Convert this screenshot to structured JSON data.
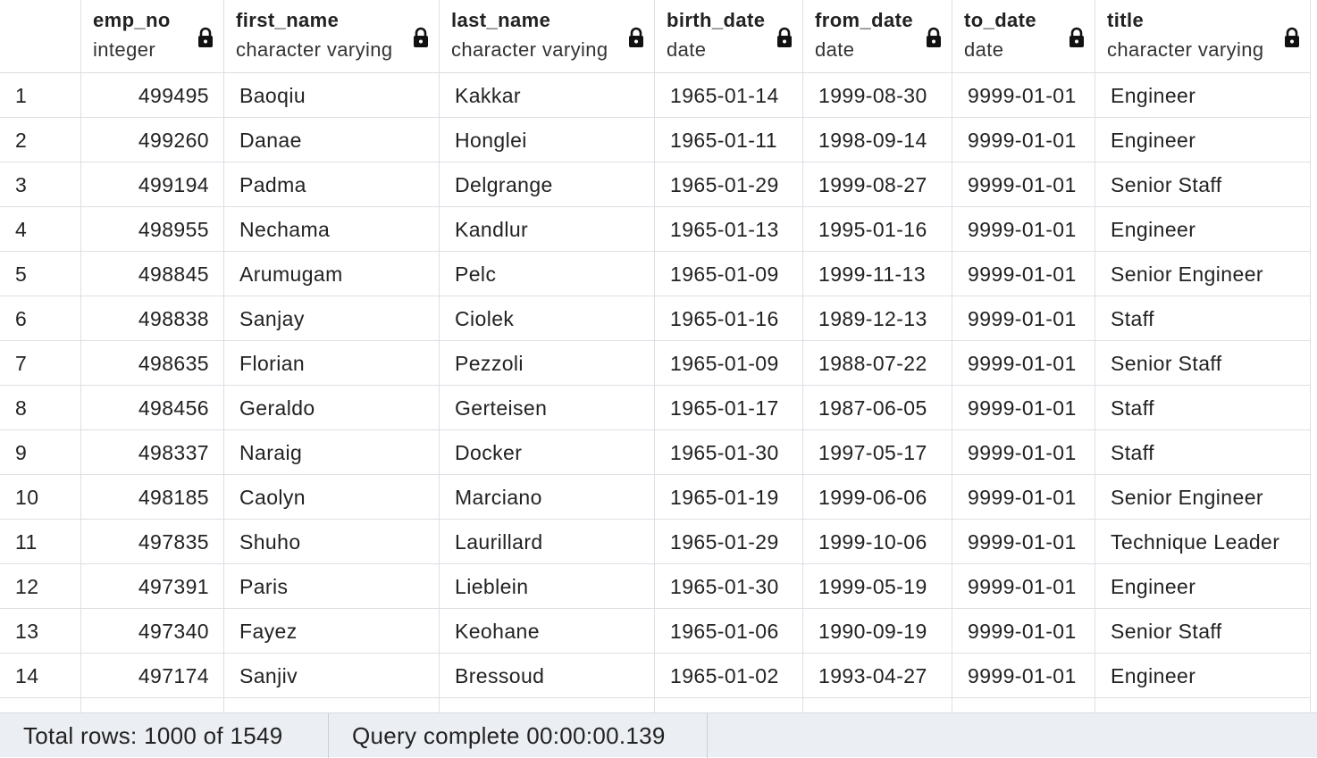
{
  "columns": [
    {
      "name": "",
      "type": ""
    },
    {
      "name": "emp_no",
      "type": "integer"
    },
    {
      "name": "first_name",
      "type": "character varying"
    },
    {
      "name": "last_name",
      "type": "character varying"
    },
    {
      "name": "birth_date",
      "type": "date"
    },
    {
      "name": "from_date",
      "type": "date"
    },
    {
      "name": "to_date",
      "type": "date"
    },
    {
      "name": "title",
      "type": "character varying"
    }
  ],
  "rows": [
    [
      "1",
      "499495",
      "Baoqiu",
      "Kakkar",
      "1965-01-14",
      "1999-08-30",
      "9999-01-01",
      "Engineer"
    ],
    [
      "2",
      "499260",
      "Danae",
      "Honglei",
      "1965-01-11",
      "1998-09-14",
      "9999-01-01",
      "Engineer"
    ],
    [
      "3",
      "499194",
      "Padma",
      "Delgrange",
      "1965-01-29",
      "1999-08-27",
      "9999-01-01",
      "Senior Staff"
    ],
    [
      "4",
      "498955",
      "Nechama",
      "Kandlur",
      "1965-01-13",
      "1995-01-16",
      "9999-01-01",
      "Engineer"
    ],
    [
      "5",
      "498845",
      "Arumugam",
      "Pelc",
      "1965-01-09",
      "1999-11-13",
      "9999-01-01",
      "Senior Engineer"
    ],
    [
      "6",
      "498838",
      "Sanjay",
      "Ciolek",
      "1965-01-16",
      "1989-12-13",
      "9999-01-01",
      "Staff"
    ],
    [
      "7",
      "498635",
      "Florian",
      "Pezzoli",
      "1965-01-09",
      "1988-07-22",
      "9999-01-01",
      "Senior Staff"
    ],
    [
      "8",
      "498456",
      "Geraldo",
      "Gerteisen",
      "1965-01-17",
      "1987-06-05",
      "9999-01-01",
      "Staff"
    ],
    [
      "9",
      "498337",
      "Naraig",
      "Docker",
      "1965-01-30",
      "1997-05-17",
      "9999-01-01",
      "Staff"
    ],
    [
      "10",
      "498185",
      "Caolyn",
      "Marciano",
      "1965-01-19",
      "1999-06-06",
      "9999-01-01",
      "Senior Engineer"
    ],
    [
      "11",
      "497835",
      "Shuho",
      "Laurillard",
      "1965-01-29",
      "1999-10-06",
      "9999-01-01",
      "Technique Leader"
    ],
    [
      "12",
      "497391",
      "Paris",
      "Lieblein",
      "1965-01-30",
      "1999-05-19",
      "9999-01-01",
      "Engineer"
    ],
    [
      "13",
      "497340",
      "Fayez",
      "Keohane",
      "1965-01-06",
      "1990-09-19",
      "9999-01-01",
      "Senior Staff"
    ],
    [
      "14",
      "497174",
      "Sanjiv",
      "Bressoud",
      "1965-01-02",
      "1993-04-27",
      "9999-01-01",
      "Engineer"
    ]
  ],
  "icons": {
    "column_lock": "lock-icon"
  },
  "colors": {
    "grid_line": "#dcdfe4",
    "status_bg": "#ebeef3",
    "text": "#222222"
  },
  "status": {
    "total_rows": "Total rows: 1000 of 1549",
    "query": "Query complete 00:00:00.139"
  }
}
